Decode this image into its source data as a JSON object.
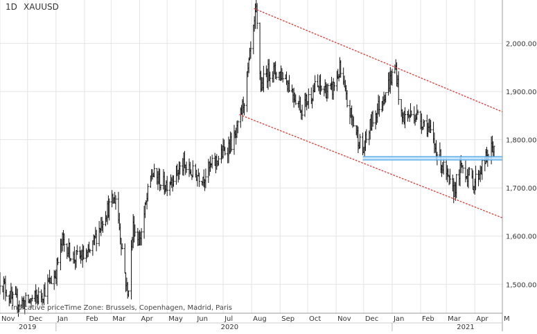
{
  "header": {
    "timeframe": "1D",
    "symbol": "XAUUSD"
  },
  "footer": {
    "price_type": "Indicative price",
    "timezone": "Time Zone: Brussels, Copenhagen, Madrid, Paris"
  },
  "chart_data": {
    "type": "bar",
    "style": "ohlc-bars",
    "ylim": [
      1440,
      2090
    ],
    "x_range": [
      "2019-11-01",
      "2021-05-01"
    ],
    "y_ticks": [
      1500,
      1600,
      1700,
      1800,
      1900,
      2000
    ],
    "y_tick_labels": [
      "1,500.00",
      "1,600.00",
      "1,700.00",
      "1,800.00",
      "1,900.00",
      "2,000.00"
    ],
    "month_labels": [
      {
        "label": "Nov",
        "date": "2019-11-01"
      },
      {
        "label": "Dec",
        "date": "2019-12-01"
      },
      {
        "label": "Jan",
        "date": "2020-01-01"
      },
      {
        "label": "Feb",
        "date": "2020-02-01"
      },
      {
        "label": "Mar",
        "date": "2020-03-01"
      },
      {
        "label": "Apr",
        "date": "2020-04-01"
      },
      {
        "label": "May",
        "date": "2020-05-01"
      },
      {
        "label": "Jun",
        "date": "2020-06-01"
      },
      {
        "label": "Jul",
        "date": "2020-07-01"
      },
      {
        "label": "Aug",
        "date": "2020-08-01"
      },
      {
        "label": "Sep",
        "date": "2020-09-01"
      },
      {
        "label": "Oct",
        "date": "2020-10-01"
      },
      {
        "label": "Nov",
        "date": "2020-11-01"
      },
      {
        "label": "Dec",
        "date": "2020-12-01"
      },
      {
        "label": "Jan",
        "date": "2021-01-01"
      },
      {
        "label": "Feb",
        "date": "2021-02-01"
      },
      {
        "label": "Mar",
        "date": "2021-03-01"
      },
      {
        "label": "Apr",
        "date": "2021-04-01"
      },
      {
        "label": "M",
        "date": "2021-05-01"
      }
    ],
    "year_labels": [
      {
        "label": "2019",
        "date": "2019-12-01"
      },
      {
        "label": "2020",
        "date": "2020-07-08"
      },
      {
        "label": "2021",
        "date": "2021-03-22"
      }
    ],
    "year_separators": [
      "2020-01-01",
      "2021-01-01"
    ],
    "price_path": [
      [
        "2019-11-01",
        1510
      ],
      [
        "2019-11-15",
        1465
      ],
      [
        "2019-11-29",
        1462
      ],
      [
        "2019-12-15",
        1476
      ],
      [
        "2019-12-31",
        1520
      ],
      [
        "2020-01-08",
        1590
      ],
      [
        "2020-01-20",
        1555
      ],
      [
        "2020-02-05",
        1558
      ],
      [
        "2020-02-24",
        1650
      ],
      [
        "2020-03-06",
        1680
      ],
      [
        "2020-03-12",
        1590
      ],
      [
        "2020-03-19",
        1475
      ],
      [
        "2020-03-25",
        1620
      ],
      [
        "2020-04-01",
        1590
      ],
      [
        "2020-04-14",
        1730
      ],
      [
        "2020-04-28",
        1705
      ],
      [
        "2020-05-18",
        1745
      ],
      [
        "2020-05-29",
        1730
      ],
      [
        "2020-06-10",
        1725
      ],
      [
        "2020-06-25",
        1760
      ],
      [
        "2020-07-15",
        1805
      ],
      [
        "2020-07-24",
        1885
      ],
      [
        "2020-08-06",
        2065
      ],
      [
        "2020-08-11",
        1910
      ],
      [
        "2020-08-20",
        1945
      ],
      [
        "2020-09-05",
        1935
      ],
      [
        "2020-09-24",
        1865
      ],
      [
        "2020-10-10",
        1910
      ],
      [
        "2020-10-27",
        1900
      ],
      [
        "2020-11-05",
        1945
      ],
      [
        "2020-11-13",
        1875
      ],
      [
        "2020-11-30",
        1775
      ],
      [
        "2020-12-10",
        1840
      ],
      [
        "2020-12-20",
        1880
      ],
      [
        "2021-01-05",
        1950
      ],
      [
        "2021-01-11",
        1845
      ],
      [
        "2021-01-25",
        1855
      ],
      [
        "2021-02-08",
        1830
      ],
      [
        "2021-02-19",
        1775
      ],
      [
        "2021-03-08",
        1690
      ],
      [
        "2021-03-18",
        1745
      ],
      [
        "2021-03-31",
        1710
      ],
      [
        "2021-04-09",
        1745
      ],
      [
        "2021-04-22",
        1790
      ]
    ],
    "annotations": [
      {
        "type": "trendline",
        "style": "red-dotted",
        "from": [
          "2020-08-04",
          2072
        ],
        "to": [
          "2021-05-01",
          1858
        ]
      },
      {
        "type": "trendline",
        "style": "red-dotted",
        "from": [
          "2020-07-19",
          1852
        ],
        "to": [
          "2021-05-01",
          1638
        ]
      },
      {
        "type": "support-zone",
        "style": "blue-band",
        "from": "2020-11-30",
        "to": "2021-05-01",
        "y": [
          1758,
          1765
        ]
      }
    ]
  }
}
